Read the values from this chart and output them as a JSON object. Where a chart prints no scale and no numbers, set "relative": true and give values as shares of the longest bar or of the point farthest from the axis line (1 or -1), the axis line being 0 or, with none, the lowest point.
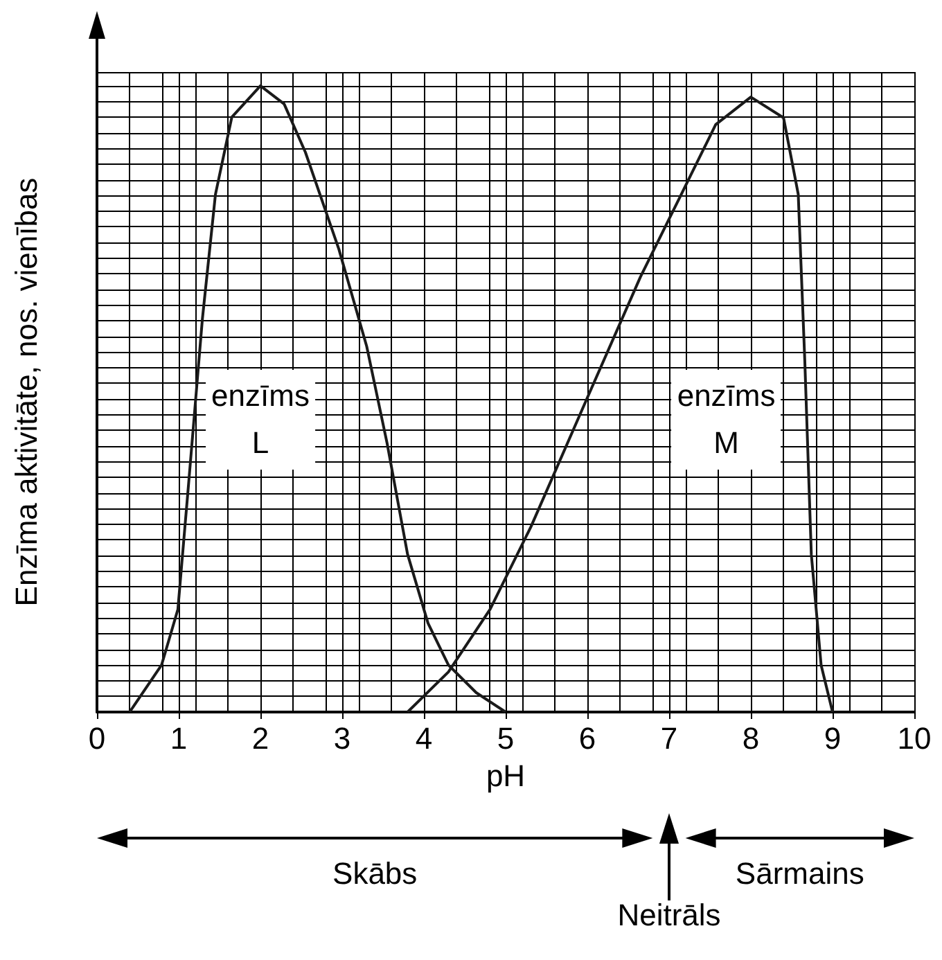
{
  "chart_data": {
    "type": "line",
    "relative": true,
    "xlabel": "pH",
    "ylabel": "Enzīma aktivitāte, nos. vienības",
    "xlim": [
      0,
      10
    ],
    "xticks": [
      0,
      1,
      2,
      3,
      4,
      5,
      6,
      7,
      8,
      9,
      10
    ],
    "grid": true,
    "marker": "none",
    "line_style": "solid",
    "series": [
      {
        "color": "#1a1a1a",
        "x": [
          0.4,
          0.79,
          0.99,
          1.12,
          1.29,
          1.45,
          1.65,
          2,
          2.29,
          2.55,
          2.96,
          3.3,
          3.55,
          3.8,
          4.05,
          4.3,
          4.64,
          5
        ],
        "values": [
          0,
          0.075,
          0.164,
          0.363,
          0.628,
          0.827,
          0.95,
          1,
          0.971,
          0.894,
          0.739,
          0.584,
          0.429,
          0.252,
          0.142,
          0.075,
          0.031,
          0
        ]
      },
      {
        "color": "#1a1a1a",
        "x": [
          3.8,
          4.3,
          4.81,
          5.31,
          5.98,
          6.65,
          7.15,
          7.57,
          8,
          8.4,
          8.58,
          8.66,
          8.74,
          8.86,
          9
        ],
        "values": [
          0,
          0.064,
          0.164,
          0.296,
          0.496,
          0.695,
          0.827,
          0.938,
          0.982,
          0.949,
          0.827,
          0.562,
          0.252,
          0.075,
          0
        ]
      }
    ],
    "annotations": [
      "enzīms\nL",
      "enzīms\nM",
      "Skābs",
      "Neitrāls",
      "Sārmains"
    ]
  }
}
